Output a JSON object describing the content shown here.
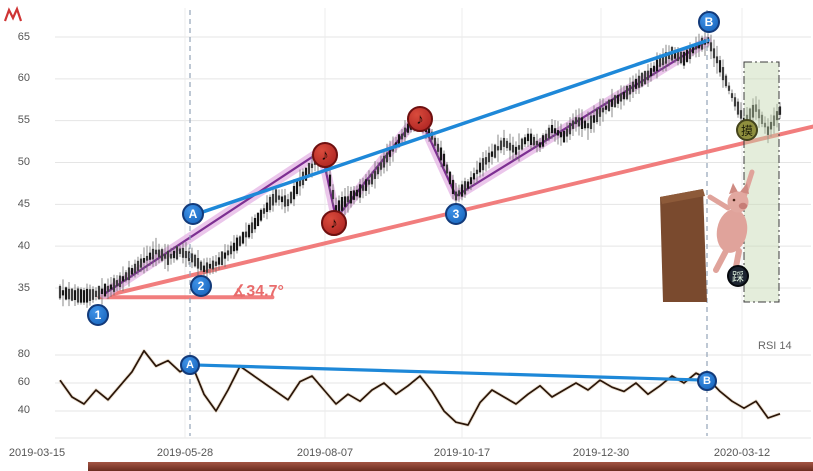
{
  "annotations": {
    "angle_label": "∡34.7°",
    "rsi_label": "RSI 14"
  },
  "badges": {
    "top": "摸",
    "bottom": "踩"
  },
  "markers": {
    "price": [
      {
        "label": "1"
      },
      {
        "label": "2"
      },
      {
        "label": "A"
      },
      {
        "label": "3"
      },
      {
        "label": "B"
      }
    ],
    "rsi": [
      {
        "label": "A"
      },
      {
        "label": "B"
      }
    ],
    "notes": [
      {
        "label": "♪"
      },
      {
        "label": "♪"
      },
      {
        "label": "♪"
      }
    ]
  },
  "axes": {
    "x_labels": [
      "2019-03-15",
      "2019-05-28",
      "2019-08-07",
      "2019-10-17",
      "2019-12-30",
      "2020-03-12"
    ],
    "price_labels": [
      "65",
      "60",
      "55",
      "50",
      "45",
      "40",
      "35"
    ],
    "rsi_labels": [
      "80",
      "60",
      "40"
    ]
  },
  "colors": {
    "trend_line": "#1e88d8",
    "support_line": "#f07070",
    "zigzag": "#7d2f92",
    "zigzag_band": "#e6b8e6",
    "candle": "#333333",
    "rsi_line": "#2a1508",
    "marker_fill": "#1b72ce",
    "note_fill": "#c03030",
    "highlight_region": "#cfe0c0"
  },
  "chart_data": [
    {
      "type": "candlestick",
      "panel": "price",
      "x_range": [
        "2019-03-15",
        "2020-03-12"
      ],
      "yticks": [
        65,
        60,
        55,
        50,
        45,
        40,
        35
      ],
      "ylim": [
        33,
        67
      ],
      "close": [
        34.5,
        34.2,
        34.0,
        34.3,
        34.9,
        35.8,
        37.0,
        38.3,
        39.3,
        38.6,
        39.4,
        38.6,
        37.3,
        37.9,
        39.2,
        40.6,
        42.2,
        44.2,
        46.0,
        45.2,
        47.6,
        49.6,
        51.2,
        44.5,
        45.6,
        46.6,
        48.0,
        50.1,
        52.1,
        54.1,
        55.6,
        53.2,
        50.3,
        46.0,
        47.3,
        49.4,
        51.0,
        52.4,
        51.4,
        53.0,
        52.1,
        54.0,
        53.1,
        55.0,
        54.4,
        56.0,
        57.1,
        58.0,
        59.4,
        60.4,
        62.0,
        63.0,
        62.4,
        63.8,
        64.6,
        61.5,
        58.0,
        55.0,
        56.5,
        53.8,
        56.2
      ],
      "trendlines": [
        {
          "name": "AB-uptrend",
          "color": "#1e88d8",
          "points_ip": [
            [
              11.1,
              43.7
            ],
            [
              54.0,
              64.6
            ]
          ]
        },
        {
          "name": "support",
          "color": "#f07070",
          "points_ip": [
            [
              3.3,
              33.9
            ],
            [
              62.9,
              54.3
            ]
          ]
        },
        {
          "name": "baseline",
          "color": "#f07070",
          "points_ip": [
            [
              3.3,
              33.9
            ],
            [
              17.7,
              33.9
            ]
          ]
        }
      ],
      "zigzag_ip": [
        [
          3.7,
          34.3
        ],
        [
          21.8,
          51.4
        ],
        [
          23.0,
          43.3
        ],
        [
          29.9,
          55.7
        ],
        [
          33.0,
          46.0
        ],
        [
          53.9,
          64.5
        ]
      ],
      "angle_deg": 34.7
    },
    {
      "type": "line",
      "panel": "rsi",
      "name": "RSI 14",
      "period": 14,
      "yticks": [
        80,
        60,
        40
      ],
      "ylim": [
        25,
        90
      ],
      "values": [
        62,
        50,
        45,
        55,
        48,
        58,
        68,
        83,
        72,
        76,
        68,
        73,
        52,
        40,
        55,
        72,
        66,
        60,
        54,
        48,
        61,
        65,
        55,
        45,
        52,
        47,
        55,
        60,
        52,
        58,
        65,
        54,
        40,
        32,
        30,
        46,
        55,
        50,
        45,
        52,
        58,
        50,
        55,
        60,
        55,
        62,
        57,
        54,
        60,
        52,
        58,
        65,
        60,
        67,
        63,
        54,
        47,
        42,
        47,
        35,
        38
      ],
      "trendlines": [
        {
          "name": "AB-divergence",
          "color": "#1e88d8",
          "points_ip": [
            [
              10.8,
              73
            ],
            [
              53.9,
              62
            ]
          ]
        }
      ]
    }
  ]
}
